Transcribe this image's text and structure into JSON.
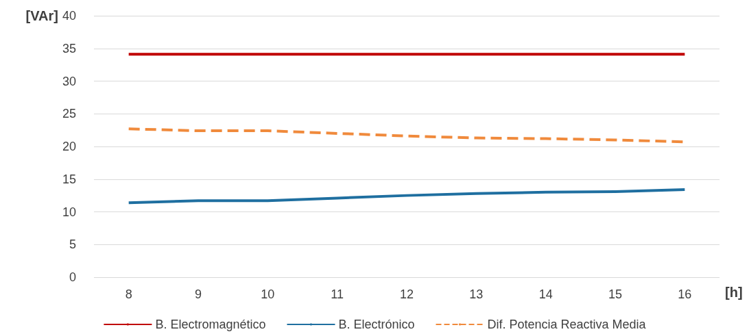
{
  "chart_data": {
    "type": "line",
    "xlabel": "[h]",
    "ylabel": "[VAr]",
    "categories": [
      "8",
      "9",
      "10",
      "11",
      "12",
      "13",
      "14",
      "15",
      "16"
    ],
    "series": [
      {
        "name": "B. Electromagnético",
        "color": "#c00000",
        "line_style": "solid",
        "values": [
          34.1,
          34.1,
          34.1,
          34.1,
          34.1,
          34.1,
          34.1,
          34.1,
          34.1
        ]
      },
      {
        "name": "B. Electrónico",
        "color": "#1f6fa0",
        "line_style": "solid",
        "values": [
          11.4,
          11.7,
          11.7,
          12.1,
          12.5,
          12.8,
          13.0,
          13.1,
          13.4
        ]
      },
      {
        "name": "Dif. Potencia Reactiva Media",
        "color": "#f08a3c",
        "line_style": "dashed",
        "values": [
          22.7,
          22.4,
          22.4,
          22.0,
          21.6,
          21.3,
          21.2,
          21.0,
          20.7
        ]
      }
    ],
    "ylim": [
      0,
      40
    ],
    "yticks": [
      0,
      5,
      10,
      15,
      20,
      25,
      30,
      35,
      40
    ],
    "grid": "y",
    "legend": "bottom",
    "marker": "none"
  }
}
